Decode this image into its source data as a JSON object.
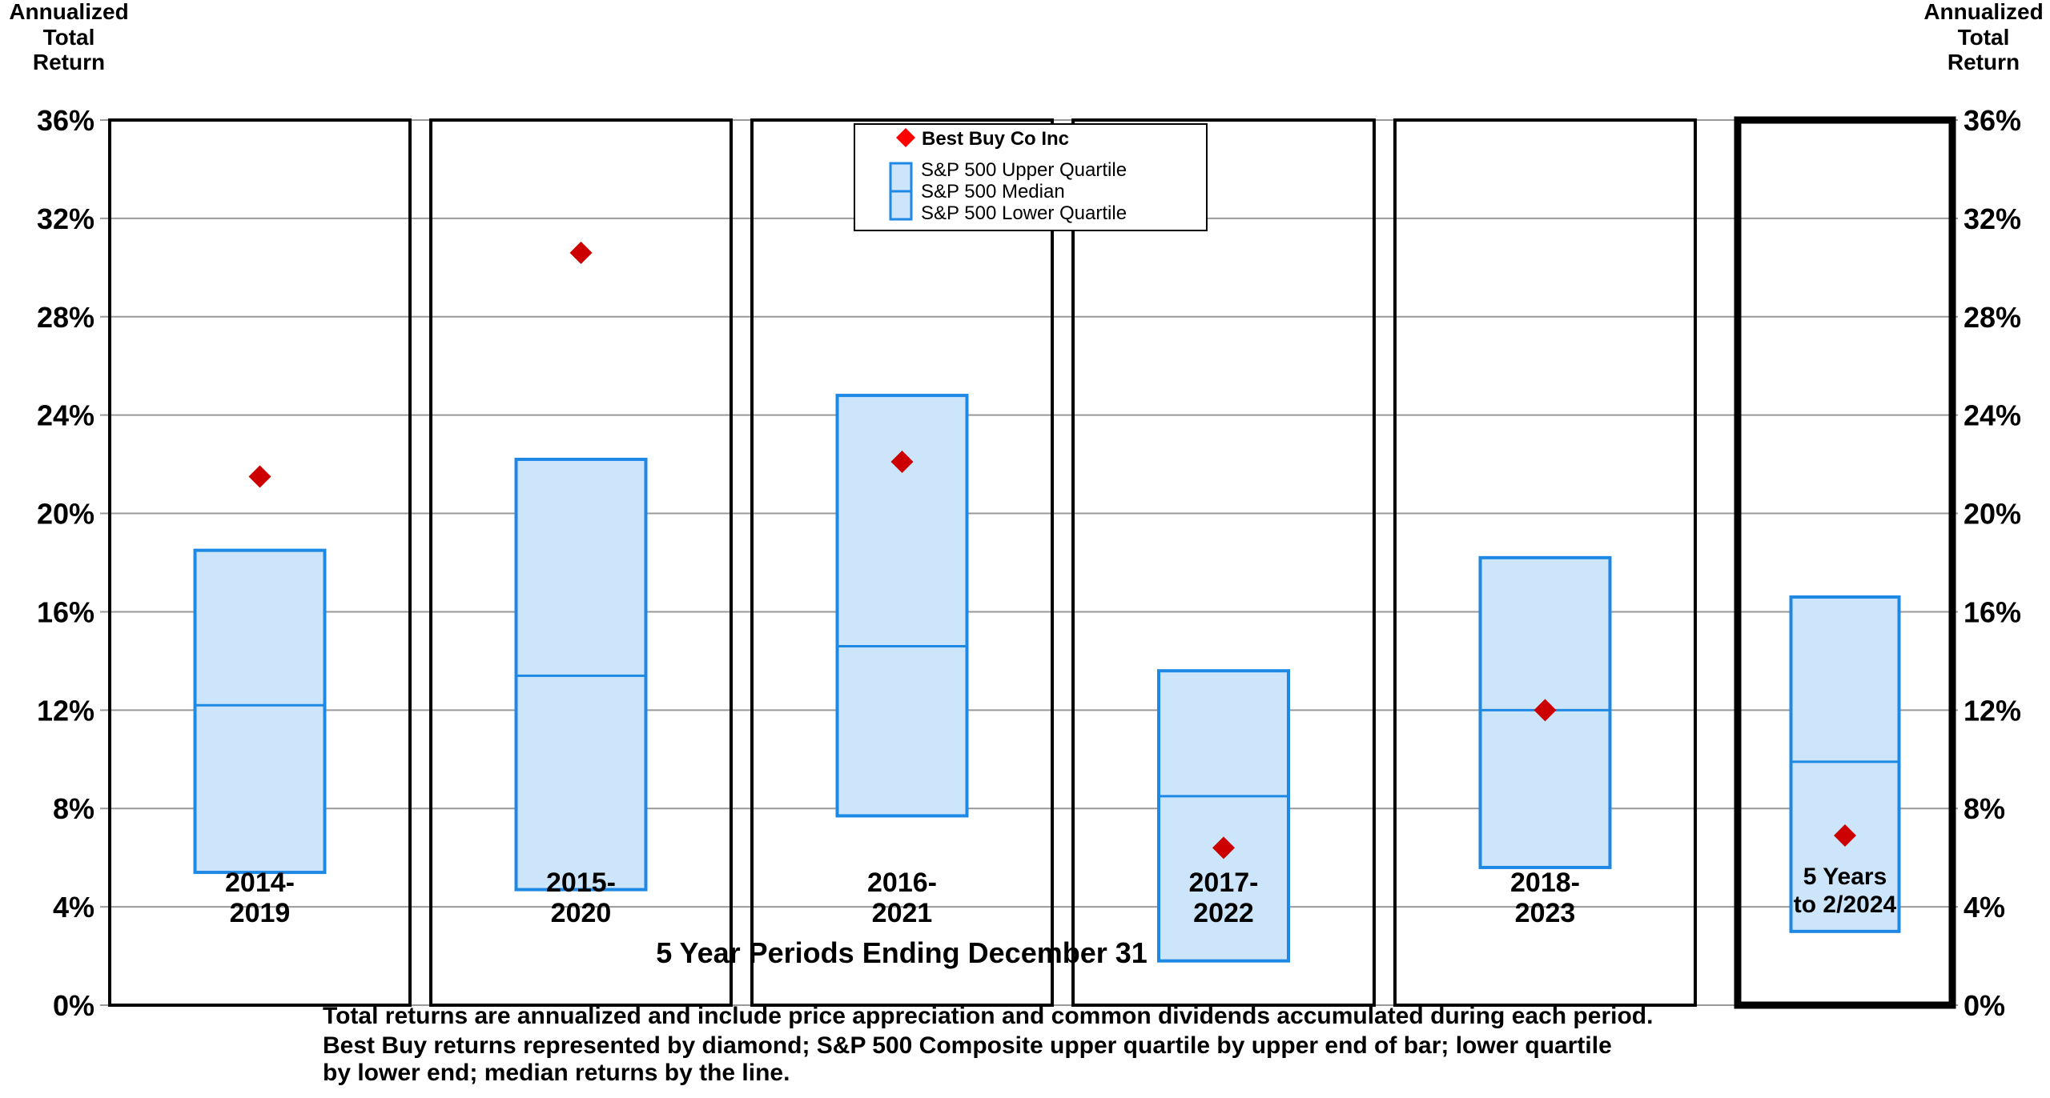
{
  "chart_data": {
    "type": "box",
    "yaxis_label": [
      "Annualized",
      "Total",
      "Return"
    ],
    "ylim": [
      0,
      36
    ],
    "yticks": [
      "0%",
      "4%",
      "8%",
      "12%",
      "16%",
      "20%",
      "24%",
      "28%",
      "32%",
      "36%"
    ],
    "grid": true,
    "xlabel": "5 Year Periods Ending December 31",
    "categories": [
      [
        "2014-",
        "2019"
      ],
      [
        "2015-",
        "2020"
      ],
      [
        "2016-",
        "2021"
      ],
      [
        "2017-",
        "2022"
      ],
      [
        "2018-",
        "2023"
      ],
      [
        "5 Years",
        "to  2/2024"
      ]
    ],
    "series": [
      {
        "name": "Best Buy Co Inc",
        "marker": "diamond",
        "color": "#cc0000",
        "values": [
          21.5,
          30.6,
          22.1,
          6.4,
          12.0,
          6.9
        ]
      },
      {
        "name": "S&P 500 Upper Quartile",
        "values": [
          18.5,
          22.2,
          24.8,
          13.6,
          18.2,
          16.6
        ]
      },
      {
        "name": "S&P 500 Median",
        "values": [
          12.2,
          13.4,
          14.6,
          8.5,
          12.0,
          9.9
        ]
      },
      {
        "name": "S&P 500 Lower Quartile",
        "values": [
          5.4,
          4.7,
          7.7,
          1.8,
          5.6,
          3.0
        ]
      }
    ],
    "legend_position": "top-center",
    "colors": {
      "box_fill": "#cce5fb",
      "box_border": "#1e88e5",
      "median": "#1e88e5",
      "diamond": "#cc0000",
      "grid": "#999999"
    }
  },
  "footnote": [
    "Total returns are annualized and include price appreciation and common dividends accumulated during each period.",
    "Best Buy returns represented by diamond; S&P 500 Composite upper quartile by upper end of bar; lower quartile",
    "by lower end; median returns by the line."
  ]
}
